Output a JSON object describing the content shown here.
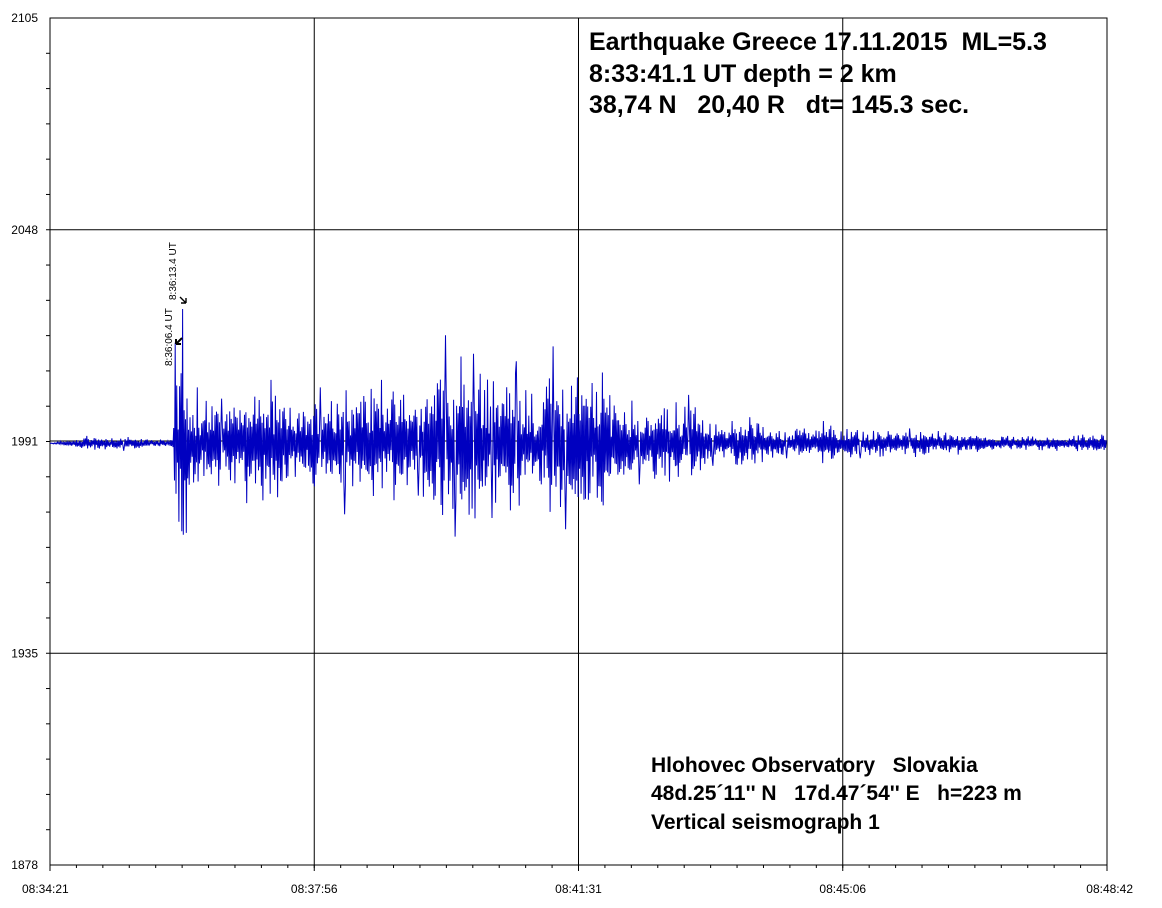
{
  "chart_data": {
    "type": "line",
    "ylim": [
      1878,
      2105
    ],
    "y_ticks": [
      "2105",
      "2048",
      "1991",
      "1935",
      "1878"
    ],
    "x_ticks": [
      "08:34:21",
      "08:37:56",
      "08:41:31",
      "08:45:06",
      "08:48:42"
    ],
    "xlim_seconds": [
      0,
      861
    ],
    "grid": true,
    "baseline": 1991,
    "series": [
      {
        "color": "#0000c0",
        "x_seconds": [
          0,
          30,
          60,
          90,
          100,
          102,
          105,
          108,
          111,
          120,
          140,
          160,
          180,
          200,
          220,
          240,
          270,
          300,
          322,
          330,
          345,
          360,
          380,
          400,
          410,
          420,
          450,
          480,
          510,
          512,
          520,
          540,
          570,
          600,
          630,
          660,
          700,
          740,
          780,
          820,
          861
        ],
        "values": [
          1991,
          1993,
          1989,
          1992,
          1990,
          2018,
          1970,
          2027,
          1967,
          2006,
          2003,
          1975,
          2008,
          1982,
          2006,
          1972,
          2008,
          1977,
          2020,
          1966,
          2015,
          1971,
          2013,
          1980,
          2017,
          1968,
          2010,
          1980,
          2002,
          1982,
          2004,
          1985,
          1998,
          1987,
          1997,
          1987,
          1995,
          1988,
          1993,
          1989,
          1994
        ]
      }
    ],
    "annotations": [
      "8:36:06.4 UT",
      "8:36:13.4 UT"
    ]
  },
  "title": {
    "line1": "Earthquake Greece 17.11.2015  ML=5.3",
    "line2": "8:33:41.1 UT depth = 2 km",
    "line3": "38,74 N   20,40 R   dt= 145.3 sec."
  },
  "station": {
    "line1": "Hlohovec Observatory   Slovakia",
    "line2": "48d.25´11'' N   17d.47´54'' E   h=223 m",
    "line3": "Vertical seismograph 1"
  }
}
